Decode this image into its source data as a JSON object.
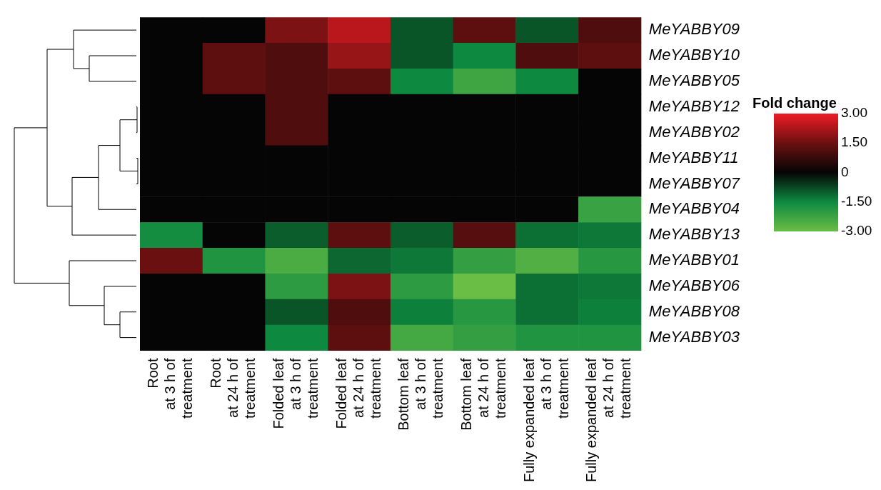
{
  "chart_data": {
    "type": "heatmap",
    "clabel": "Fold change",
    "categories": [
      "Root\nat 3 h of\ntreatment",
      "Root\nat 24 h of\ntreatment",
      "Folded leaf\nat 3 h of\ntreatment",
      "Folded leaf\nat 24 h of\ntreatment",
      "Bottom leaf\nat 3 h of\ntreatment",
      "Bottom leaf\nat 24 h of\ntreatment",
      "Fully expanded leaf\nat 3 h of\ntreatment",
      "Fully expanded leaf\nat 24 h of\ntreatment"
    ],
    "y_categories": [
      "MeYABBY09",
      "MeYABBY10",
      "MeYABBY05",
      "MeYABBY12",
      "MeYABBY02",
      "MeYABBY11",
      "MeYABBY07",
      "MeYABBY04",
      "MeYABBY13",
      "MeYABBY01",
      "MeYABBY06",
      "MeYABBY08",
      "MeYABBY03"
    ],
    "cells": [
      [
        0,
        0,
        1.7,
        2.4,
        -0.9,
        1.3,
        -0.9,
        1.1
      ],
      [
        0,
        1.3,
        1.1,
        2.0,
        -0.9,
        -1.5,
        1.1,
        1.3
      ],
      [
        0,
        1.3,
        1.1,
        1.3,
        -1.5,
        -2.3,
        -1.5,
        0
      ],
      [
        0,
        0,
        1.1,
        0,
        0,
        0,
        0,
        0
      ],
      [
        0,
        0,
        1.1,
        0,
        0,
        0,
        0,
        0
      ],
      [
        0,
        0,
        0,
        0,
        0,
        0,
        0,
        0
      ],
      [
        0,
        0,
        0,
        0,
        0,
        0,
        0,
        0
      ],
      [
        0,
        0,
        0,
        0,
        0,
        0,
        0,
        -2.2
      ],
      [
        -1.6,
        0,
        -1.0,
        1.3,
        -1.0,
        1.2,
        -1.2,
        -1.3
      ],
      [
        1.5,
        -1.8,
        -2.5,
        -1.1,
        -1.3,
        -2.1,
        -2.6,
        -1.9
      ],
      [
        0,
        0,
        -2.0,
        1.7,
        -2.0,
        -3.0,
        -1.2,
        -1.3
      ],
      [
        0,
        0,
        -0.9,
        1.1,
        -1.4,
        -1.9,
        -1.2,
        -1.4
      ],
      [
        0,
        0,
        -1.5,
        1.3,
        -2.4,
        -2.1,
        -1.8,
        -1.8
      ]
    ],
    "clim": [
      -3,
      3
    ],
    "cticks": [
      {
        "value": 3,
        "label": "3.00"
      },
      {
        "value": 1.5,
        "label": "1.50"
      },
      0,
      {
        "value": -1.5,
        "label": "-1.50"
      },
      {
        "value": -3,
        "label": "-3.00"
      }
    ]
  }
}
